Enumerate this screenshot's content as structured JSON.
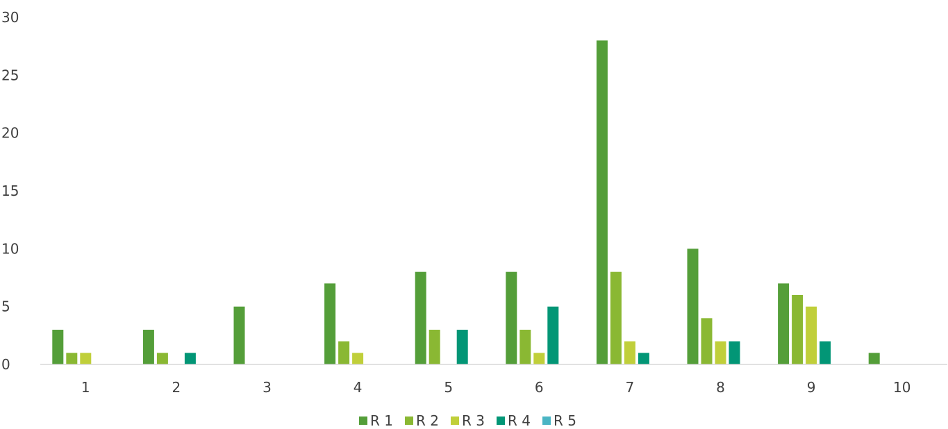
{
  "chart_data": {
    "type": "bar",
    "title": "",
    "xlabel": "",
    "ylabel": "",
    "categories": [
      "1",
      "2",
      "3",
      "4",
      "5",
      "6",
      "7",
      "8",
      "9",
      "10"
    ],
    "ylim": [
      0,
      30
    ],
    "yticks": [
      0,
      5,
      10,
      15,
      20,
      25,
      30
    ],
    "grid": false,
    "legend_position": "bottom",
    "series": [
      {
        "name": "R 1",
        "color": "#549E39",
        "values": [
          3,
          3,
          5,
          7,
          8,
          8,
          28,
          10,
          7,
          1
        ]
      },
      {
        "name": "R 2",
        "color": "#8AB833",
        "values": [
          1,
          1,
          0,
          2,
          3,
          3,
          8,
          4,
          6,
          0
        ]
      },
      {
        "name": "R 3",
        "color": "#C0CF3A",
        "values": [
          1,
          0,
          0,
          1,
          0,
          1,
          2,
          2,
          5,
          0
        ]
      },
      {
        "name": "R 4",
        "color": "#029676",
        "values": [
          0,
          1,
          0,
          0,
          3,
          5,
          1,
          2,
          2,
          0
        ]
      },
      {
        "name": "R 5",
        "color": "#4AB5C4",
        "values": [
          0,
          0,
          0,
          0,
          0,
          0,
          0,
          0,
          0,
          0
        ]
      }
    ]
  }
}
